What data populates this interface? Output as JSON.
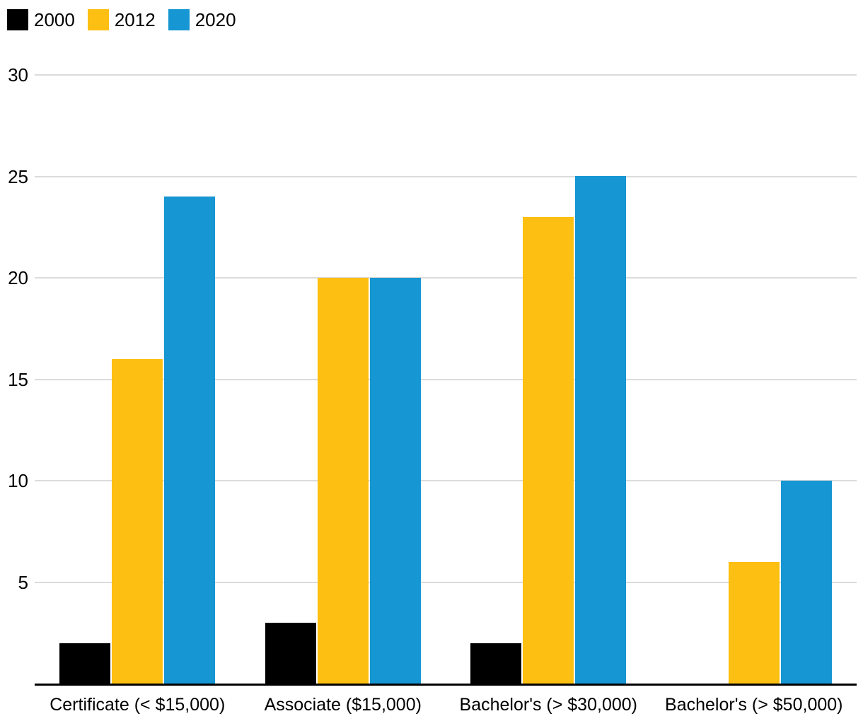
{
  "chart_data": {
    "type": "bar",
    "title": "",
    "xlabel": "",
    "ylabel": "",
    "categories": [
      "Certificate (< $15,000)",
      "Associate ($15,000)",
      "Bachelor's (> $30,000)",
      "Bachelor's (> $50,000)"
    ],
    "series": [
      {
        "name": "2000",
        "color": "#000000",
        "values": [
          2,
          3,
          2,
          0
        ]
      },
      {
        "name": "2012",
        "color": "#FDBF11",
        "values": [
          16,
          20,
          23,
          6
        ]
      },
      {
        "name": "2020",
        "color": "#1696D2",
        "values": [
          24,
          20,
          25,
          10
        ]
      }
    ],
    "ylim": [
      0,
      30
    ],
    "yticks": [
      5,
      10,
      15,
      20,
      25,
      30
    ],
    "grid": true,
    "gridline_color": "#DCDBDB",
    "axis_color": "#000000",
    "background_color": "#FFFFFF",
    "legend_position": "top-left"
  }
}
